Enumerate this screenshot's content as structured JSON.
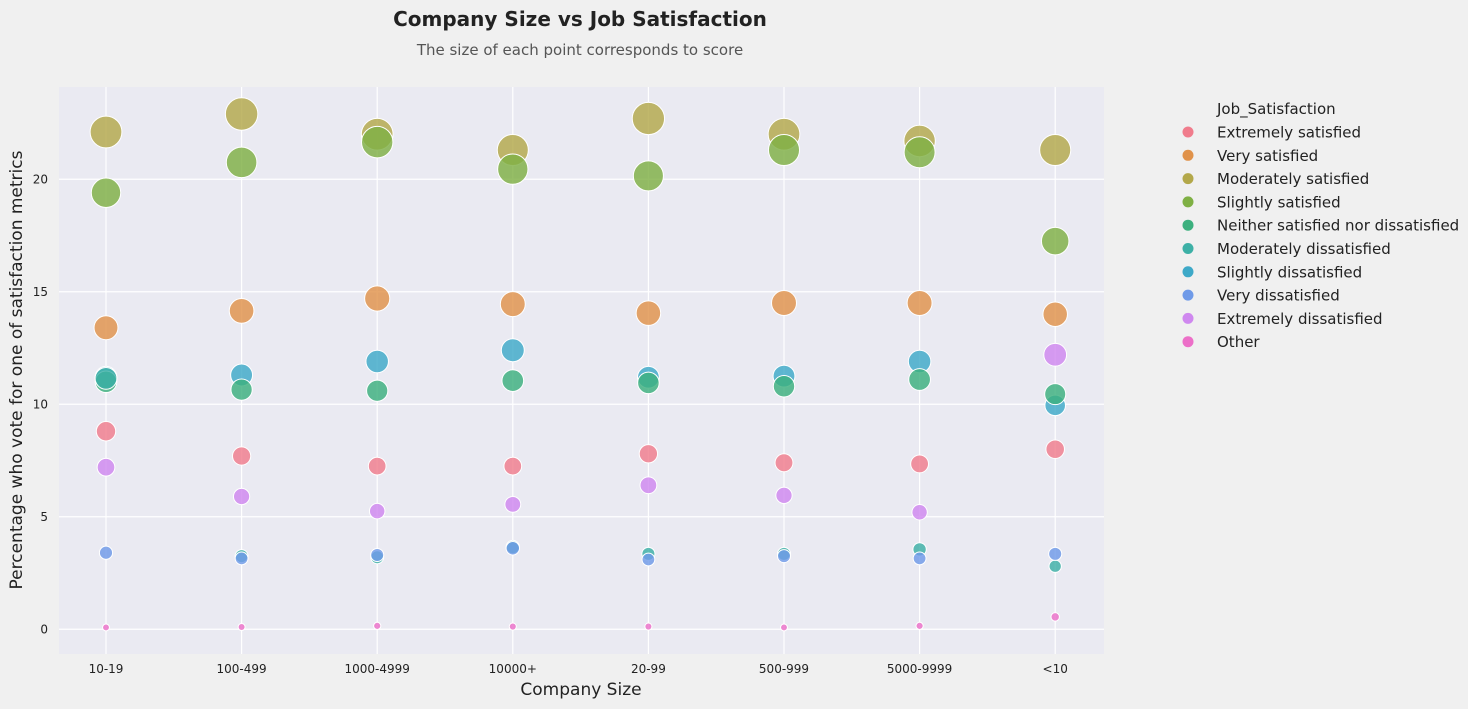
{
  "chart_data": {
    "type": "scatter",
    "title": "Company Size vs Job Satisfaction",
    "subtitle": "The size of each point corresponds to score",
    "xlabel": "Company Size",
    "ylabel": "Percentage who vote for one of satisfaction metrics",
    "categories": [
      "10-19",
      "100-499",
      "1000-4999",
      "10000+",
      "20-99",
      "500-999",
      "5000-9999",
      "<10"
    ],
    "ylim": [
      -1.1,
      24.1
    ],
    "yticks": [
      0,
      5,
      10,
      15,
      20
    ],
    "grid": true,
    "legend": {
      "title": "Job_Satisfaction",
      "placement": "outside-right"
    },
    "series": [
      {
        "name": "Extremely satisfied",
        "color": "#f07c8c",
        "values": [
          8.8,
          7.7,
          7.25,
          7.25,
          7.8,
          7.4,
          7.35,
          8.0
        ]
      },
      {
        "name": "Very satisfied",
        "color": "#e0924a",
        "values": [
          13.4,
          14.15,
          14.7,
          14.45,
          14.05,
          14.5,
          14.5,
          14.0
        ]
      },
      {
        "name": "Moderately satisfied",
        "color": "#b3a84a",
        "values": [
          22.1,
          22.9,
          22.0,
          21.3,
          22.7,
          22.0,
          21.7,
          21.3
        ]
      },
      {
        "name": "Slightly satisfied",
        "color": "#7fb044",
        "values": [
          19.4,
          20.75,
          21.65,
          20.45,
          20.15,
          21.3,
          21.2,
          17.25
        ]
      },
      {
        "name": "Neither satisfied nor dissatisfied",
        "color": "#3cb07e",
        "values": [
          11.0,
          10.65,
          10.6,
          11.05,
          10.95,
          10.8,
          11.1,
          10.45
        ]
      },
      {
        "name": "Moderately dissatisfied",
        "color": "#3db0a6",
        "values": [
          11.15,
          3.25,
          3.2,
          3.65,
          3.35,
          3.35,
          3.55,
          2.8
        ]
      },
      {
        "name": "Slightly dissatisfied",
        "color": "#3ea9c8",
        "values": [
          11.2,
          11.3,
          11.9,
          12.4,
          11.2,
          11.25,
          11.9,
          9.95
        ]
      },
      {
        "name": "Very dissatisfied",
        "color": "#6f9ae8",
        "values": [
          3.4,
          3.15,
          3.3,
          3.6,
          3.1,
          3.25,
          3.15,
          3.35
        ]
      },
      {
        "name": "Extremely dissatisfied",
        "color": "#cf88ef",
        "values": [
          7.2,
          5.9,
          5.25,
          5.55,
          6.4,
          5.95,
          5.2,
          12.2
        ]
      },
      {
        "name": "Other",
        "color": "#ec6fc8",
        "values": [
          0.08,
          0.1,
          0.15,
          0.12,
          0.12,
          0.08,
          0.15,
          0.55
        ]
      }
    ]
  }
}
